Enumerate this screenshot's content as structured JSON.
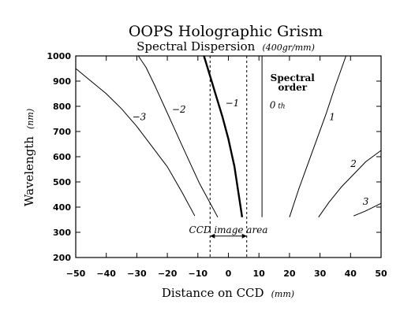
{
  "chart_data": {
    "type": "line",
    "title": "OOPS Holographic Grism",
    "subtitle": "Spectral Dispersion",
    "subtitle_unit": "(400gr/mm)",
    "xlabel": "Distance on CCD",
    "xlabel_unit": "(mm)",
    "ylabel": "Wavelength",
    "ylabel_unit": "(nm)",
    "xlim": [
      -50,
      50
    ],
    "ylim": [
      200,
      1000
    ],
    "xticks": [
      "-50",
      "-40",
      "-30",
      "-20",
      "-10",
      "0",
      "10",
      "20",
      "30",
      "40",
      "50"
    ],
    "xtick_values": [
      -50,
      -40,
      -30,
      -20,
      -10,
      0,
      10,
      20,
      30,
      40,
      50
    ],
    "yticks": [
      "200",
      "300",
      "400",
      "500",
      "600",
      "700",
      "800",
      "900",
      "1000"
    ],
    "ytick_values": [
      200,
      300,
      400,
      500,
      600,
      700,
      800,
      900,
      1000
    ],
    "grid": false,
    "legend": "none",
    "series": [
      {
        "label": "−3",
        "label_at": {
          "x": -31.5,
          "y": 745
        },
        "bold": false,
        "x": [
          -50,
          -45,
          -40,
          -35,
          -30,
          -25,
          -20,
          -15,
          -11
        ],
        "y": [
          950,
          900,
          850,
          790,
          720,
          640,
          560,
          455,
          365
        ]
      },
      {
        "label": "−2",
        "label_at": {
          "x": -18.5,
          "y": 775
        },
        "bold": false,
        "x": [
          -29.5,
          -27,
          -24,
          -21,
          -18,
          -15,
          -12,
          -9.5,
          -3.5
        ],
        "y": [
          1000,
          955,
          880,
          800,
          720,
          640,
          560,
          495,
          360
        ]
      },
      {
        "label": "−1",
        "label_at": {
          "x": -1,
          "y": 800
        },
        "bold": true,
        "x": [
          -8,
          -6,
          -4,
          -2,
          0,
          2,
          4.5
        ],
        "y": [
          1000,
          920,
          840,
          760,
          670,
          560,
          360
        ]
      },
      {
        "label": "",
        "label_at": null,
        "bold": false,
        "x": [
          11,
          11
        ],
        "y": [
          360,
          1000
        ]
      },
      {
        "label": "1",
        "label_at": {
          "x": 33,
          "y": 745
        },
        "bold": false,
        "x": [
          20,
          23,
          26,
          29,
          32,
          35,
          38.5
        ],
        "y": [
          360,
          470,
          570,
          670,
          770,
          880,
          1000
        ]
      },
      {
        "label": "2",
        "label_at": {
          "x": 40,
          "y": 560
        },
        "bold": false,
        "x": [
          29.5,
          33,
          37,
          41,
          45,
          50
        ],
        "y": [
          360,
          420,
          480,
          530,
          580,
          625
        ]
      },
      {
        "label": "3",
        "label_at": {
          "x": 44,
          "y": 410
        },
        "bold": false,
        "x": [
          41,
          45,
          50
        ],
        "y": [
          365,
          385,
          415
        ]
      }
    ],
    "annotations": {
      "spectral_order_line1": "Spectral",
      "spectral_order_line2": "order",
      "zeroth": "0",
      "zeroth_suffix": "th",
      "ccd_area_label": "CCD image area",
      "ccd_area_range": [
        -6,
        6
      ],
      "ccd_arrow_y": 285
    }
  }
}
